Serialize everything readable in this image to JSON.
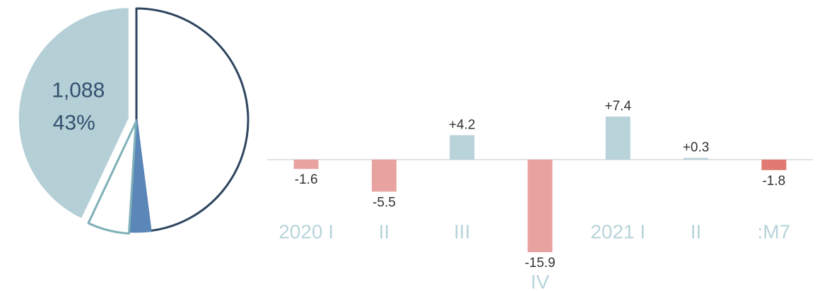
{
  "chart_data": [
    {
      "type": "pie",
      "values": [
        1214,
        76,
        152,
        1088
      ],
      "value_labels": [
        null,
        null,
        null,
        "1,088"
      ],
      "percent_labels": [
        null,
        null,
        null,
        "43%"
      ],
      "colors": [
        "#ffffff",
        "#5b86b8",
        "#ffffff",
        "#b4cfd6"
      ],
      "edge_colors": [
        "#2e4560",
        "#5b86b8",
        "#7fb0b8",
        "#ffffff"
      ]
    },
    {
      "type": "bar",
      "categories": [
        "2020 I",
        "II",
        "III",
        "IV",
        "2021 I",
        "II",
        ":M7"
      ],
      "values": [
        -1.6,
        -5.5,
        4.2,
        -15.9,
        7.4,
        0.3,
        -1.8
      ],
      "value_labels": [
        "-1.6",
        "-5.5",
        "+4.2",
        "-15.9",
        "+7.4",
        "+0.3",
        "-1.8"
      ],
      "colors": [
        "#e8a3a0",
        "#e8a3a0",
        "#b8d4da",
        "#e8a3a0",
        "#b8d4da",
        "#b8d4da",
        "#e07a73"
      ]
    }
  ]
}
